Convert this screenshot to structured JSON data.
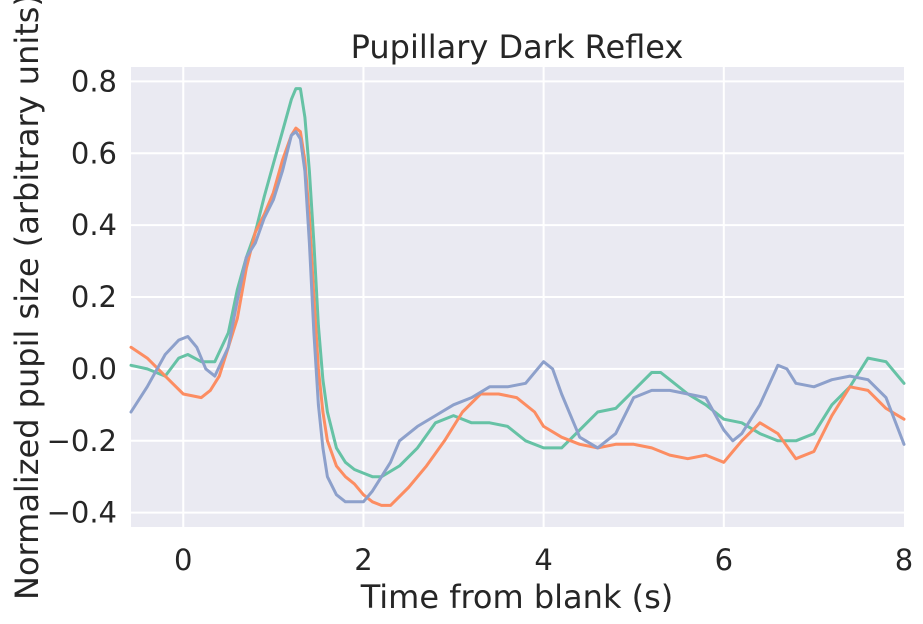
{
  "chart_data": {
    "type": "line",
    "title": "Pupillary Dark Reflex",
    "xlabel": "Time from blank (s)",
    "ylabel": "Normalized pupil size (arbitrary units)",
    "xlim": [
      -0.58,
      8.0
    ],
    "ylim": [
      -0.44,
      0.84
    ],
    "xticks": [
      0,
      2,
      4,
      6,
      8
    ],
    "yticks": [
      -0.4,
      -0.2,
      0.0,
      0.2,
      0.4,
      0.6,
      0.8
    ],
    "ytick_labels": [
      "−0.4",
      "−0.2",
      "0.0",
      "0.2",
      "0.4",
      "0.6",
      "0.8"
    ],
    "grid": true,
    "legend": false,
    "background_color": "#eaeaf2",
    "series": [
      {
        "color": "#66c2a5",
        "x": [
          -0.58,
          -0.4,
          -0.2,
          -0.05,
          0.05,
          0.2,
          0.35,
          0.5,
          0.6,
          0.7,
          0.8,
          0.9,
          1.0,
          1.1,
          1.2,
          1.25,
          1.3,
          1.35,
          1.4,
          1.45,
          1.5,
          1.55,
          1.6,
          1.7,
          1.8,
          1.9,
          2.0,
          2.1,
          2.2,
          2.4,
          2.6,
          2.8,
          3.0,
          3.2,
          3.4,
          3.6,
          3.8,
          4.0,
          4.2,
          4.4,
          4.6,
          4.8,
          5.0,
          5.2,
          5.3,
          5.4,
          5.6,
          5.8,
          6.0,
          6.2,
          6.4,
          6.6,
          6.8,
          7.0,
          7.2,
          7.4,
          7.6,
          7.8,
          8.0
        ],
        "y": [
          0.01,
          0.0,
          -0.02,
          0.03,
          0.04,
          0.02,
          0.02,
          0.1,
          0.22,
          0.31,
          0.38,
          0.48,
          0.57,
          0.66,
          0.75,
          0.78,
          0.78,
          0.7,
          0.55,
          0.35,
          0.12,
          -0.03,
          -0.12,
          -0.22,
          -0.26,
          -0.28,
          -0.29,
          -0.3,
          -0.3,
          -0.27,
          -0.22,
          -0.15,
          -0.13,
          -0.15,
          -0.15,
          -0.16,
          -0.2,
          -0.22,
          -0.22,
          -0.17,
          -0.12,
          -0.11,
          -0.06,
          -0.01,
          -0.01,
          -0.03,
          -0.07,
          -0.1,
          -0.14,
          -0.15,
          -0.18,
          -0.2,
          -0.2,
          -0.18,
          -0.1,
          -0.05,
          0.03,
          0.02,
          -0.04
        ]
      },
      {
        "color": "#fc8d62",
        "x": [
          -0.58,
          -0.4,
          -0.2,
          0.0,
          0.2,
          0.3,
          0.4,
          0.5,
          0.6,
          0.7,
          0.8,
          0.9,
          1.0,
          1.1,
          1.2,
          1.25,
          1.3,
          1.35,
          1.4,
          1.45,
          1.5,
          1.55,
          1.6,
          1.7,
          1.8,
          1.9,
          2.0,
          2.1,
          2.2,
          2.3,
          2.5,
          2.7,
          2.9,
          3.1,
          3.3,
          3.5,
          3.7,
          3.9,
          4.0,
          4.2,
          4.4,
          4.6,
          4.8,
          5.0,
          5.2,
          5.4,
          5.6,
          5.8,
          6.0,
          6.1,
          6.2,
          6.4,
          6.6,
          6.8,
          7.0,
          7.2,
          7.4,
          7.6,
          7.8,
          8.0
        ],
        "y": [
          0.06,
          0.03,
          -0.02,
          -0.07,
          -0.08,
          -0.06,
          -0.02,
          0.06,
          0.14,
          0.28,
          0.38,
          0.43,
          0.49,
          0.58,
          0.65,
          0.67,
          0.66,
          0.58,
          0.42,
          0.2,
          0.0,
          -0.12,
          -0.2,
          -0.27,
          -0.3,
          -0.32,
          -0.35,
          -0.37,
          -0.38,
          -0.38,
          -0.33,
          -0.27,
          -0.2,
          -0.12,
          -0.07,
          -0.07,
          -0.08,
          -0.12,
          -0.16,
          -0.19,
          -0.21,
          -0.22,
          -0.21,
          -0.21,
          -0.22,
          -0.24,
          -0.25,
          -0.24,
          -0.26,
          -0.23,
          -0.2,
          -0.15,
          -0.18,
          -0.25,
          -0.23,
          -0.13,
          -0.05,
          -0.06,
          -0.11,
          -0.14
        ]
      },
      {
        "color": "#8da0cb",
        "x": [
          -0.58,
          -0.4,
          -0.2,
          -0.05,
          0.05,
          0.15,
          0.25,
          0.35,
          0.5,
          0.6,
          0.7,
          0.8,
          0.9,
          1.0,
          1.1,
          1.2,
          1.25,
          1.3,
          1.35,
          1.4,
          1.45,
          1.5,
          1.55,
          1.6,
          1.7,
          1.8,
          1.9,
          2.0,
          2.1,
          2.2,
          2.3,
          2.4,
          2.6,
          2.8,
          3.0,
          3.2,
          3.4,
          3.6,
          3.8,
          4.0,
          4.1,
          4.2,
          4.4,
          4.6,
          4.8,
          5.0,
          5.2,
          5.4,
          5.6,
          5.8,
          6.0,
          6.1,
          6.2,
          6.4,
          6.6,
          6.7,
          6.8,
          7.0,
          7.2,
          7.4,
          7.6,
          7.8,
          8.0
        ],
        "y": [
          -0.12,
          -0.05,
          0.04,
          0.08,
          0.09,
          0.06,
          0.0,
          -0.02,
          0.06,
          0.19,
          0.31,
          0.35,
          0.42,
          0.47,
          0.55,
          0.65,
          0.66,
          0.64,
          0.55,
          0.35,
          0.1,
          -0.1,
          -0.22,
          -0.3,
          -0.35,
          -0.37,
          -0.37,
          -0.37,
          -0.34,
          -0.3,
          -0.26,
          -0.2,
          -0.16,
          -0.13,
          -0.1,
          -0.08,
          -0.05,
          -0.05,
          -0.04,
          0.02,
          0.0,
          -0.07,
          -0.19,
          -0.22,
          -0.18,
          -0.08,
          -0.06,
          -0.06,
          -0.07,
          -0.08,
          -0.17,
          -0.2,
          -0.18,
          -0.1,
          0.01,
          0.0,
          -0.04,
          -0.05,
          -0.03,
          -0.02,
          -0.03,
          -0.08,
          -0.21
        ]
      }
    ]
  }
}
